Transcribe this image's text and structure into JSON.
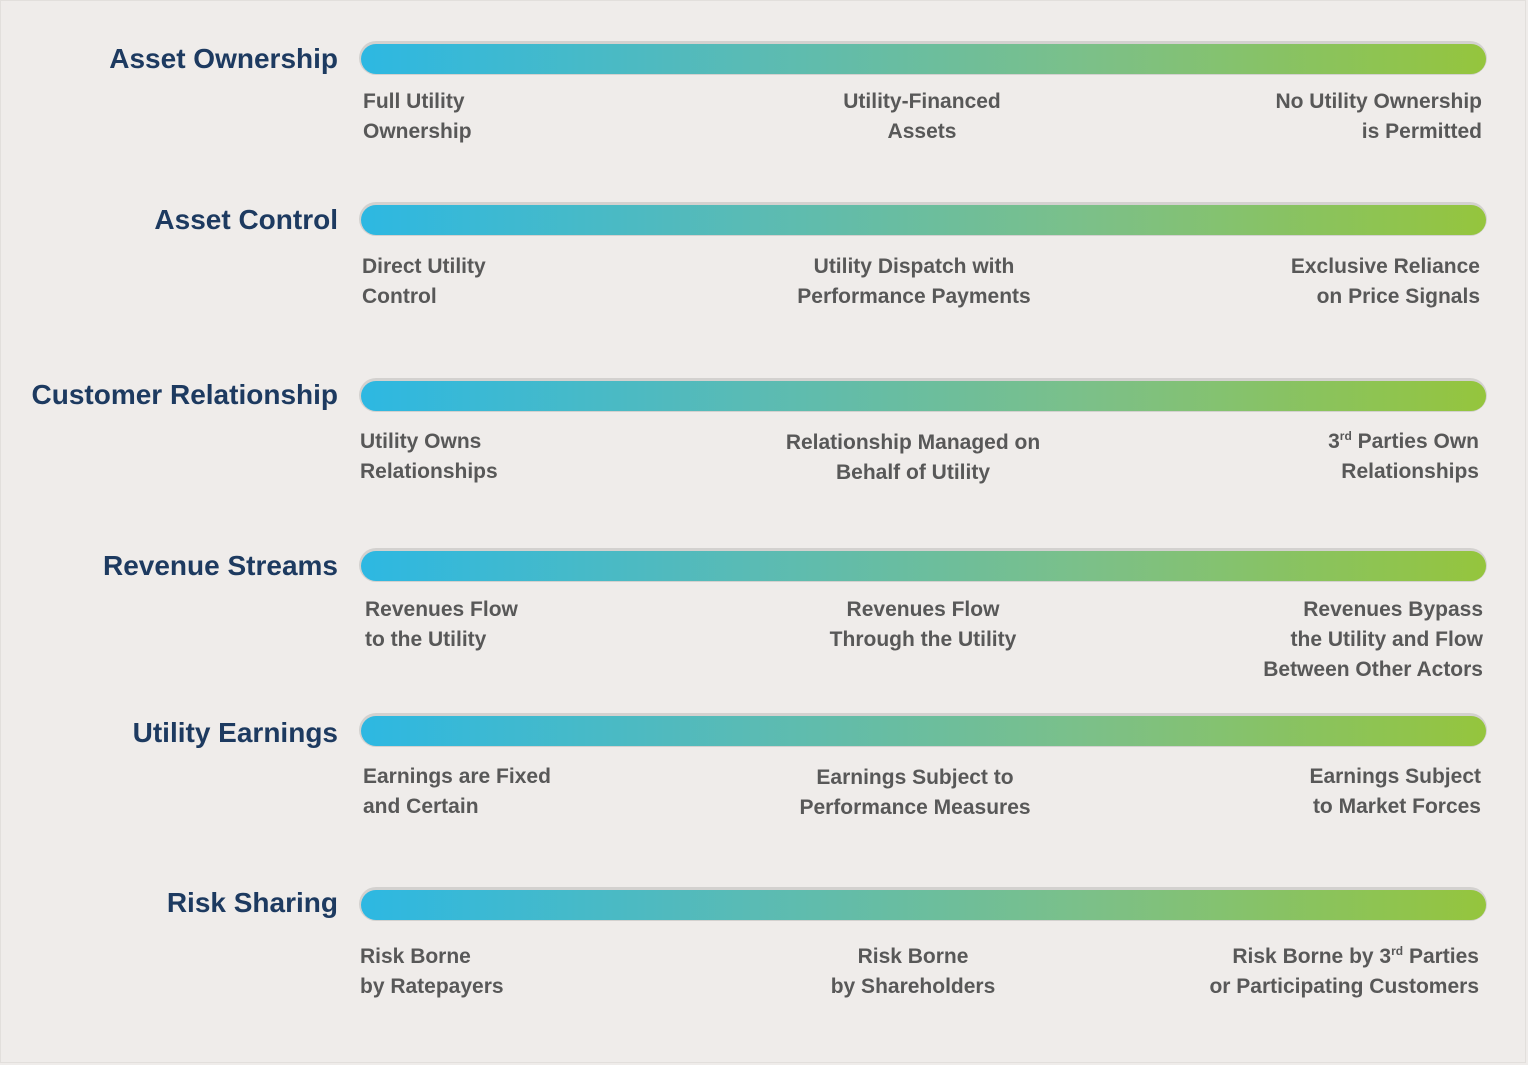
{
  "rows": [
    {
      "title": "Asset Ownership",
      "left": [
        "Full Utility",
        "Ownership"
      ],
      "center": [
        "Utility-Financed",
        "Assets"
      ],
      "right": [
        "No Utility Ownership",
        "is Permitted"
      ]
    },
    {
      "title": "Asset Control",
      "left": [
        "Direct Utility",
        "Control"
      ],
      "center": [
        "Utility Dispatch with",
        "Performance Payments"
      ],
      "right": [
        "Exclusive Reliance",
        "on Price Signals"
      ]
    },
    {
      "title": "Customer Relationship",
      "left": [
        "Utility Owns",
        "Relationships"
      ],
      "center": [
        "Relationship Managed on",
        "Behalf of Utility"
      ],
      "right_sup": {
        "pre": "3",
        "sup": "rd",
        "post": " Parties Own"
      },
      "right": [
        "",
        "Relationships"
      ]
    },
    {
      "title": "Revenue Streams",
      "left": [
        "Revenues Flow",
        "to the Utility"
      ],
      "center": [
        "Revenues Flow",
        "Through the Utility"
      ],
      "right": [
        "Revenues Bypass",
        "the Utility and Flow",
        "Between Other Actors"
      ]
    },
    {
      "title": "Utility Earnings",
      "left": [
        "Earnings are Fixed",
        "and Certain"
      ],
      "center": [
        "Earnings Subject to",
        "Performance Measures"
      ],
      "right": [
        "Earnings Subject",
        "to Market Forces"
      ]
    },
    {
      "title": "Risk Sharing",
      "left": [
        "Risk Borne",
        "by Ratepayers"
      ],
      "center": [
        "Risk Borne",
        "by Shareholders"
      ],
      "right_sup": {
        "pre": "Risk Borne by 3",
        "sup": "rd",
        "post": " Parties"
      },
      "right": [
        "",
        "or Participating Customers"
      ]
    }
  ]
}
